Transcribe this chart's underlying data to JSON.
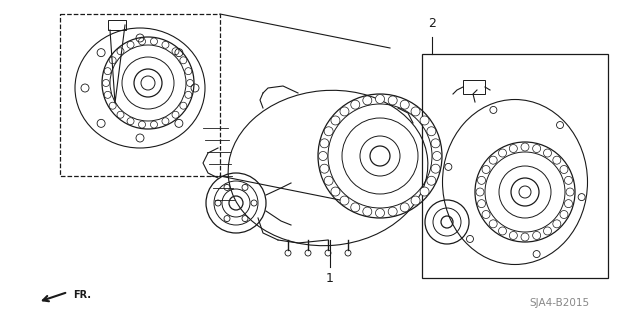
{
  "background_color": "#ffffff",
  "diagram_code": "SJA4-B2015",
  "line_color": "#1a1a1a",
  "text_color": "#1a1a1a",
  "gray_color": "#888888",
  "fig_width": 6.4,
  "fig_height": 3.19,
  "dpi": 100,
  "font_size_label": 9,
  "font_size_code": 7.5,
  "font_size_fr": 7
}
